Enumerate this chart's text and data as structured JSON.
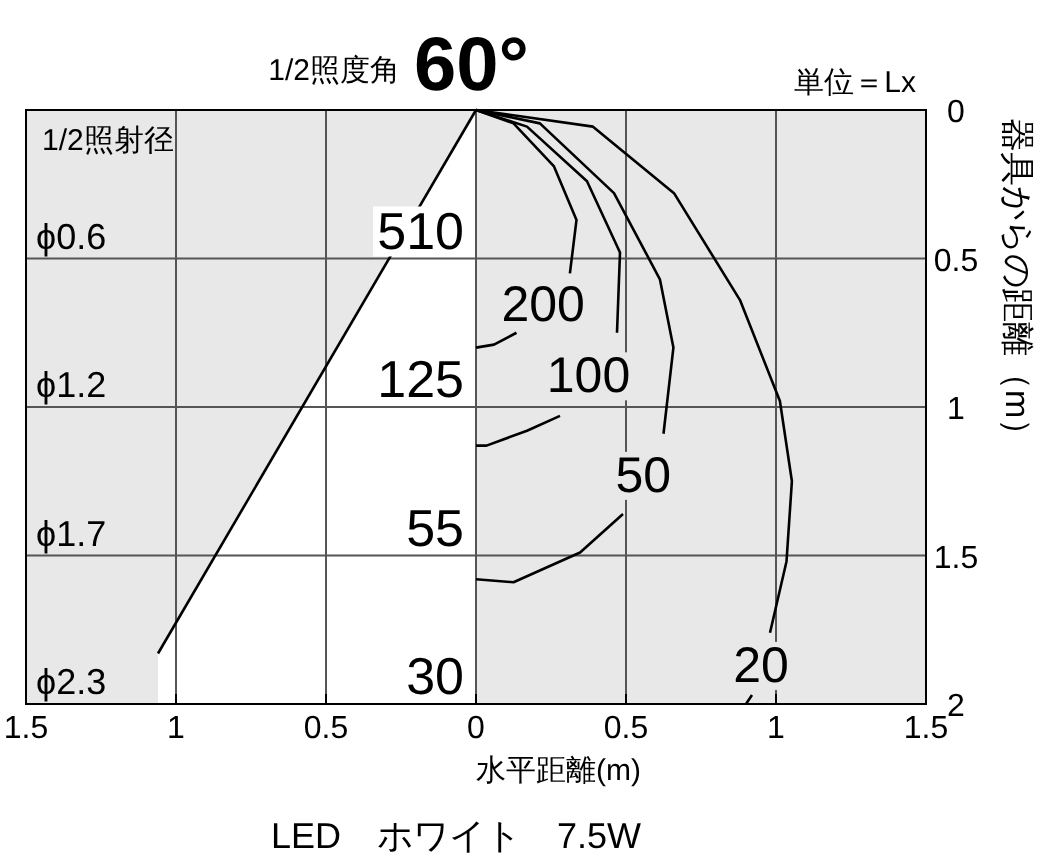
{
  "chart_data": {
    "type": "line",
    "title": "1/2照度角",
    "subtitle": "60°",
    "xlabel": "水平距離(m)",
    "ylabel": "器具からの距離（m）",
    "xlim": [
      -1.5,
      1.5
    ],
    "ylim": [
      2,
      0
    ],
    "xticks": [
      {
        "value": -1.5,
        "label": "1.5"
      },
      {
        "value": -1,
        "label": "1"
      },
      {
        "value": -0.5,
        "label": "0.5"
      },
      0,
      0.5,
      1,
      1.5
    ],
    "yticks": [
      0,
      0.5,
      1,
      1.5,
      2
    ],
    "grid": true,
    "series": [
      {
        "color": "#000000",
        "x": [
          0,
          -1.06
        ],
        "values": [
          0,
          1.83
        ]
      },
      {
        "name": "200",
        "color": "#000000",
        "x": [
          0,
          0.125,
          0.26,
          0.335,
          0.313,
          null,
          0.135,
          0.06,
          0
        ],
        "values": [
          0,
          0.045,
          0.19,
          0.37,
          0.55,
          null,
          0.75,
          0.79,
          0.8
        ]
      },
      {
        "name": "100",
        "color": "#000000",
        "x": [
          0,
          0.17,
          0.37,
          0.48,
          0.47,
          null,
          0.28,
          0.17,
          0.035,
          0
        ],
        "values": [
          0,
          0.056,
          0.24,
          0.48,
          0.75,
          null,
          1.03,
          1.08,
          1.13,
          1.13
        ]
      },
      {
        "name": "50",
        "color": "#000000",
        "x": [
          0,
          0.213,
          0.46,
          0.613,
          0.658,
          0.625,
          null,
          0.49,
          0.347,
          0.125,
          0
        ],
        "values": [
          0,
          0.045,
          0.28,
          0.57,
          0.8,
          1.09,
          null,
          1.36,
          1.49,
          1.59,
          1.58
        ]
      },
      {
        "name": "20",
        "color": "#000000",
        "x": [
          0,
          0.39,
          0.66,
          0.88,
          1.013,
          1.053,
          1.035,
          0.98,
          null,
          0.92,
          0.9
        ],
        "values": [
          0,
          0.056,
          0.28,
          0.64,
          0.98,
          1.25,
          1.52,
          1.76,
          null,
          1.97,
          2.0
        ]
      }
    ],
    "annotations": [
      "510",
      "125",
      "55",
      "30",
      "ϕ0.6",
      "ϕ1.2",
      "ϕ1.7",
      "ϕ2.3",
      "単位＝Lx",
      "1/2照射径",
      "LED　ホワイト　7.5W"
    ]
  }
}
